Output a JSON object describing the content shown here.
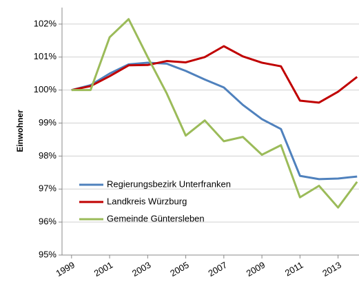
{
  "chart_data": {
    "type": "line",
    "y_label": "Einwohner",
    "x": [
      1999,
      2000,
      2001,
      2002,
      2003,
      2004,
      2005,
      2006,
      2007,
      2008,
      2009,
      2010,
      2011,
      2012,
      2013,
      2014
    ],
    "series": [
      {
        "name": "Regierungsbezirk Unterfranken",
        "color": "#4f81bd",
        "values": [
          100,
          100.15,
          100.5,
          100.78,
          100.83,
          100.8,
          100.58,
          100.32,
          100.08,
          99.55,
          99.12,
          98.82,
          97.4,
          97.3,
          97.32,
          97.38
        ]
      },
      {
        "name": "Landkreis Würzburg",
        "color": "#c00000",
        "values": [
          100,
          100.12,
          100.42,
          100.75,
          100.76,
          100.88,
          100.84,
          101.0,
          101.33,
          101.02,
          100.83,
          100.72,
          99.68,
          99.62,
          99.95,
          100.4
        ]
      },
      {
        "name": "Gemeinde Güntersleben",
        "color": "#9bbb59",
        "values": [
          100,
          100,
          101.6,
          102.15,
          101.0,
          99.9,
          98.62,
          99.08,
          98.45,
          98.58,
          98.04,
          98.33,
          96.75,
          97.1,
          96.44,
          97.22
        ]
      }
    ],
    "xlim": [
      1998.5,
      2014.1
    ],
    "xticks": [
      1999,
      2001,
      2003,
      2005,
      2007,
      2009,
      2011,
      2013
    ],
    "ylim": [
      95,
      102.5
    ],
    "yticks": [
      {
        "value": 95,
        "label": "95%"
      },
      {
        "value": 96,
        "label": "96%"
      },
      {
        "value": 97,
        "label": "97%"
      },
      {
        "value": 98,
        "label": "98%"
      },
      {
        "value": 99,
        "label": "99%"
      },
      {
        "value": 100,
        "label": "100%"
      },
      {
        "value": 101,
        "label": "101%"
      },
      {
        "value": 102,
        "label": "102%"
      }
    ],
    "grid": true
  }
}
